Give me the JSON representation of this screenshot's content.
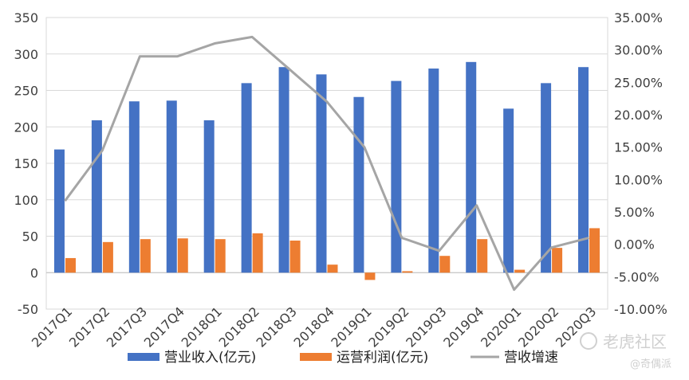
{
  "chart_data": {
    "type": "bar",
    "categories": [
      "2017Q1",
      "2017Q2",
      "2017Q3",
      "2017Q4",
      "2018Q1",
      "2018Q2",
      "2018Q3",
      "2018Q4",
      "2019Q1",
      "2019Q2",
      "2019Q3",
      "2019Q4",
      "2020Q1",
      "2020Q2",
      "2020Q3"
    ],
    "series": [
      {
        "name": "营业收入(亿元)",
        "type": "bar",
        "axis": "left",
        "color": "#4472c4",
        "values": [
          169,
          209,
          235,
          236,
          209,
          260,
          282,
          272,
          241,
          263,
          280,
          289,
          225,
          260,
          282
        ]
      },
      {
        "name": "运营利润(亿元)",
        "type": "bar",
        "axis": "left",
        "color": "#ed7d31",
        "values": [
          20,
          42,
          46,
          47,
          46,
          54,
          44,
          11,
          -10,
          2,
          23,
          46,
          4,
          34,
          61
        ]
      },
      {
        "name": "营收增速",
        "type": "line",
        "axis": "right",
        "color": "#a5a5a5",
        "values": [
          0.067,
          0.145,
          0.29,
          0.29,
          0.31,
          0.32,
          0.27,
          0.22,
          0.15,
          0.01,
          -0.01,
          0.06,
          -0.07,
          -0.005,
          0.01
        ]
      }
    ],
    "yticks_left": [
      "350",
      "300",
      "250",
      "200",
      "150",
      "100",
      "50",
      "0",
      "-50"
    ],
    "yticks_right": [
      "35.00%",
      "30.00%",
      "25.00%",
      "20.00%",
      "15.00%",
      "10.00%",
      "5.00%",
      "0.00%",
      "-5.00%",
      "-10.00%"
    ],
    "ylim_left": [
      -50,
      350
    ],
    "ylim_right": [
      -0.1,
      0.35
    ],
    "legend_position": "bottom",
    "grid": true
  },
  "watermark": {
    "main": "老虎社区",
    "sub": "@奇偶派"
  }
}
